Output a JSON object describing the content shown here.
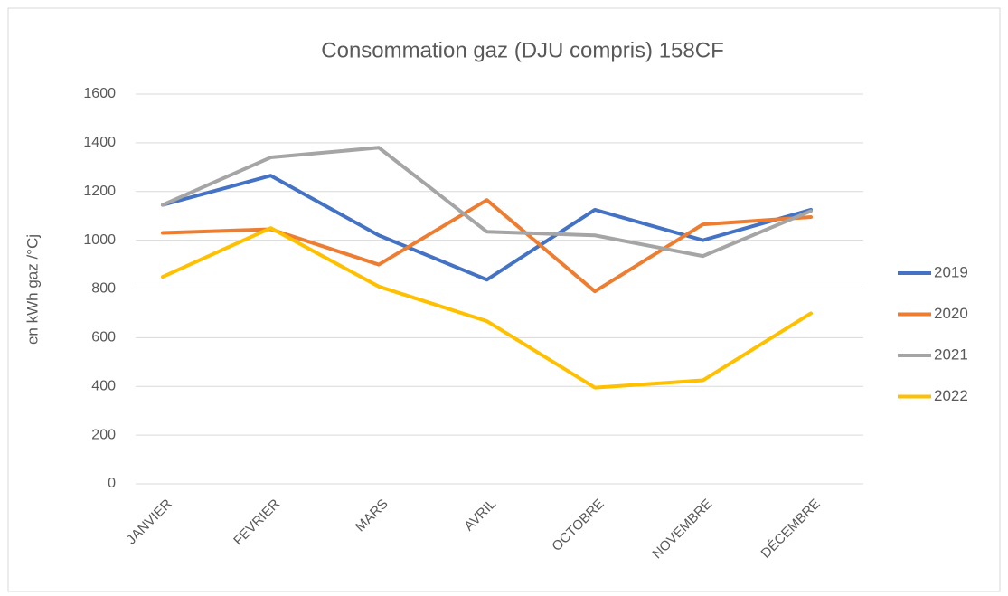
{
  "chart_data": {
    "type": "line",
    "title": "Consommation gaz (DJU compris) 158CF",
    "y_label": "en kWh gaz /°Cj",
    "categories": [
      "JANVIER",
      "FEVRIER",
      "MARS",
      "AVRIL",
      "OCTOBRE",
      "NOVEMBRE",
      "DÉCEMBRE"
    ],
    "series": [
      {
        "name": "2019",
        "color": "#4472c4",
        "values": [
          1145,
          1265,
          1020,
          838,
          1125,
          1000,
          1125
        ]
      },
      {
        "name": "2020",
        "color": "#ed7d31",
        "values": [
          1030,
          1045,
          900,
          1165,
          790,
          1065,
          1095
        ]
      },
      {
        "name": "2021",
        "color": "#a5a5a5",
        "values": [
          1145,
          1340,
          1380,
          1035,
          1020,
          935,
          1120
        ]
      },
      {
        "name": "2022",
        "color": "#ffc000",
        "values": [
          850,
          1050,
          810,
          668,
          395,
          425,
          700
        ]
      }
    ],
    "ylim": [
      0,
      1600
    ],
    "yticks": [
      0,
      200,
      400,
      600,
      800,
      1000,
      1200,
      1400,
      1600
    ],
    "grid": true,
    "legend": "right"
  }
}
